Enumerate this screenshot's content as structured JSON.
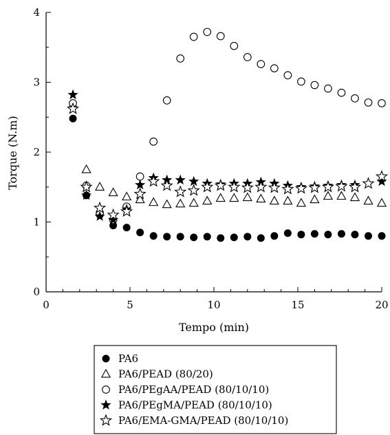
{
  "chart_data": {
    "type": "scatter",
    "xlabel": "Tempo (min)",
    "ylabel": "Torque (N.m)",
    "xlim": [
      0,
      20
    ],
    "ylim": [
      0,
      4
    ],
    "xticks": [
      "0",
      "5",
      "10",
      "15",
      "20"
    ],
    "yticks": [
      "0",
      "1",
      "2",
      "3",
      "4"
    ],
    "grid": false,
    "legend_position": "bottom-center",
    "series": [
      {
        "name": "PA6",
        "marker": "filled-circle",
        "x": [
          1.6,
          2.4,
          3.2,
          4.0,
          4.8,
          5.6,
          6.4,
          7.2,
          8.0,
          8.8,
          9.6,
          10.4,
          11.2,
          12.0,
          12.8,
          13.6,
          14.4,
          15.2,
          16.0,
          16.8,
          17.6,
          18.4,
          19.2,
          20.0
        ],
        "y": [
          2.48,
          1.38,
          1.1,
          0.95,
          0.92,
          0.85,
          0.8,
          0.79,
          0.79,
          0.78,
          0.79,
          0.77,
          0.78,
          0.79,
          0.77,
          0.8,
          0.84,
          0.82,
          0.83,
          0.82,
          0.83,
          0.82,
          0.8,
          0.8
        ]
      },
      {
        "name": "PA6/PEAD (80/20)",
        "marker": "open-triangle",
        "x": [
          1.6,
          2.4,
          3.2,
          4.0,
          4.8,
          5.6,
          6.4,
          7.2,
          8.0,
          8.8,
          9.6,
          10.4,
          11.2,
          12.0,
          12.8,
          13.6,
          14.4,
          15.2,
          16.0,
          16.8,
          17.6,
          18.4,
          19.2,
          20.0
        ],
        "y": [
          2.68,
          1.75,
          1.5,
          1.42,
          1.36,
          1.32,
          1.28,
          1.25,
          1.26,
          1.27,
          1.3,
          1.34,
          1.34,
          1.35,
          1.33,
          1.3,
          1.3,
          1.27,
          1.32,
          1.37,
          1.37,
          1.35,
          1.3,
          1.27
        ]
      },
      {
        "name": "PA6/PEgAA/PEAD (80/10/10)",
        "marker": "open-circle",
        "x": [
          1.6,
          2.4,
          3.2,
          4.0,
          4.8,
          5.6,
          6.4,
          7.2,
          8.0,
          8.8,
          9.6,
          10.4,
          11.2,
          12.0,
          12.8,
          13.6,
          14.4,
          15.2,
          16.0,
          16.8,
          17.6,
          18.4,
          19.2,
          20.0
        ],
        "y": [
          2.7,
          1.52,
          1.13,
          1.03,
          1.22,
          1.65,
          2.15,
          2.74,
          3.34,
          3.65,
          3.72,
          3.66,
          3.52,
          3.36,
          3.26,
          3.2,
          3.1,
          3.01,
          2.96,
          2.91,
          2.85,
          2.77,
          2.71,
          2.7
        ]
      },
      {
        "name": "PA6/PEgMA/PEAD (80/10/10)",
        "marker": "filled-star",
        "x": [
          1.6,
          2.4,
          3.2,
          4.0,
          4.8,
          5.6,
          6.4,
          7.2,
          8.0,
          8.8,
          9.6,
          10.4,
          11.2,
          12.0,
          12.8,
          13.6,
          14.4,
          15.2,
          16.0,
          16.8,
          17.6,
          18.4,
          19.2,
          20.0
        ],
        "y": [
          2.82,
          1.38,
          1.08,
          1.03,
          1.18,
          1.53,
          1.63,
          1.6,
          1.6,
          1.58,
          1.55,
          1.54,
          1.55,
          1.55,
          1.57,
          1.55,
          1.52,
          1.5,
          1.51,
          1.52,
          1.53,
          1.53,
          1.55,
          1.58
        ]
      },
      {
        "name": "PA6/EMA-GMA/PEAD (80/10/10)",
        "marker": "open-star",
        "x": [
          1.6,
          2.4,
          3.2,
          4.0,
          4.8,
          5.6,
          6.4,
          7.2,
          8.0,
          8.8,
          9.6,
          10.4,
          11.2,
          12.0,
          12.8,
          13.6,
          14.4,
          15.2,
          16.0,
          16.8,
          17.6,
          18.4,
          19.2,
          20.0
        ],
        "y": [
          2.62,
          1.5,
          1.2,
          1.1,
          1.15,
          1.4,
          1.58,
          1.52,
          1.43,
          1.45,
          1.5,
          1.52,
          1.5,
          1.49,
          1.5,
          1.49,
          1.47,
          1.48,
          1.49,
          1.5,
          1.51,
          1.5,
          1.55,
          1.65
        ]
      }
    ]
  }
}
